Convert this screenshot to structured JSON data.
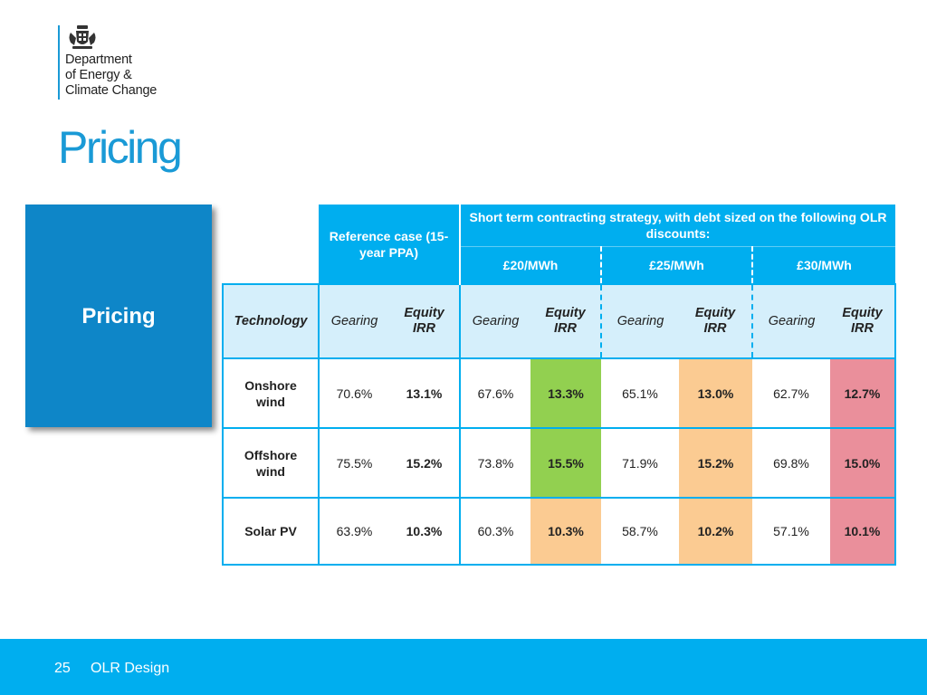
{
  "header": {
    "logo_lines": [
      "Department",
      "of Energy &",
      "Climate Change"
    ],
    "title": "Pricing"
  },
  "side_box": {
    "label": "Pricing"
  },
  "table": {
    "reference_header": "Reference case (15-year PPA)",
    "strategy_header": "Short term contracting strategy, with debt sized on the following OLR discounts:",
    "discounts": [
      "£20/MWh",
      "£25/MWh",
      "£30/MWh"
    ],
    "column_headers": [
      "Technology",
      "Gearing",
      "Equity IRR",
      "Gearing",
      "Equity IRR",
      "Gearing",
      "Equity IRR",
      "Gearing",
      "Equity IRR"
    ],
    "rows": [
      {
        "technology": "Onshore wind",
        "cells": [
          "70.6%",
          "13.1%",
          "67.6%",
          "13.3%",
          "65.1%",
          "13.0%",
          "62.7%",
          "12.7%"
        ]
      },
      {
        "technology": "Offshore wind",
        "cells": [
          "75.5%",
          "15.2%",
          "73.8%",
          "15.5%",
          "71.9%",
          "15.2%",
          "69.8%",
          "15.0%"
        ]
      },
      {
        "technology": "Solar PV",
        "cells": [
          "63.9%",
          "10.3%",
          "60.3%",
          "10.3%",
          "58.7%",
          "10.2%",
          "57.1%",
          "10.1%"
        ]
      }
    ],
    "highlight_colors": {
      "green": "#92d050",
      "orange": "#fbcb92",
      "red": "#ea8f9b"
    },
    "row_highlights": [
      [
        null,
        null,
        null,
        "green",
        null,
        "orange",
        null,
        "red"
      ],
      [
        null,
        null,
        null,
        "green",
        null,
        "orange",
        null,
        "red"
      ],
      [
        null,
        null,
        null,
        "orange",
        null,
        "orange",
        null,
        "red"
      ]
    ]
  },
  "footer": {
    "page_number": "25",
    "label": "OLR Design"
  }
}
